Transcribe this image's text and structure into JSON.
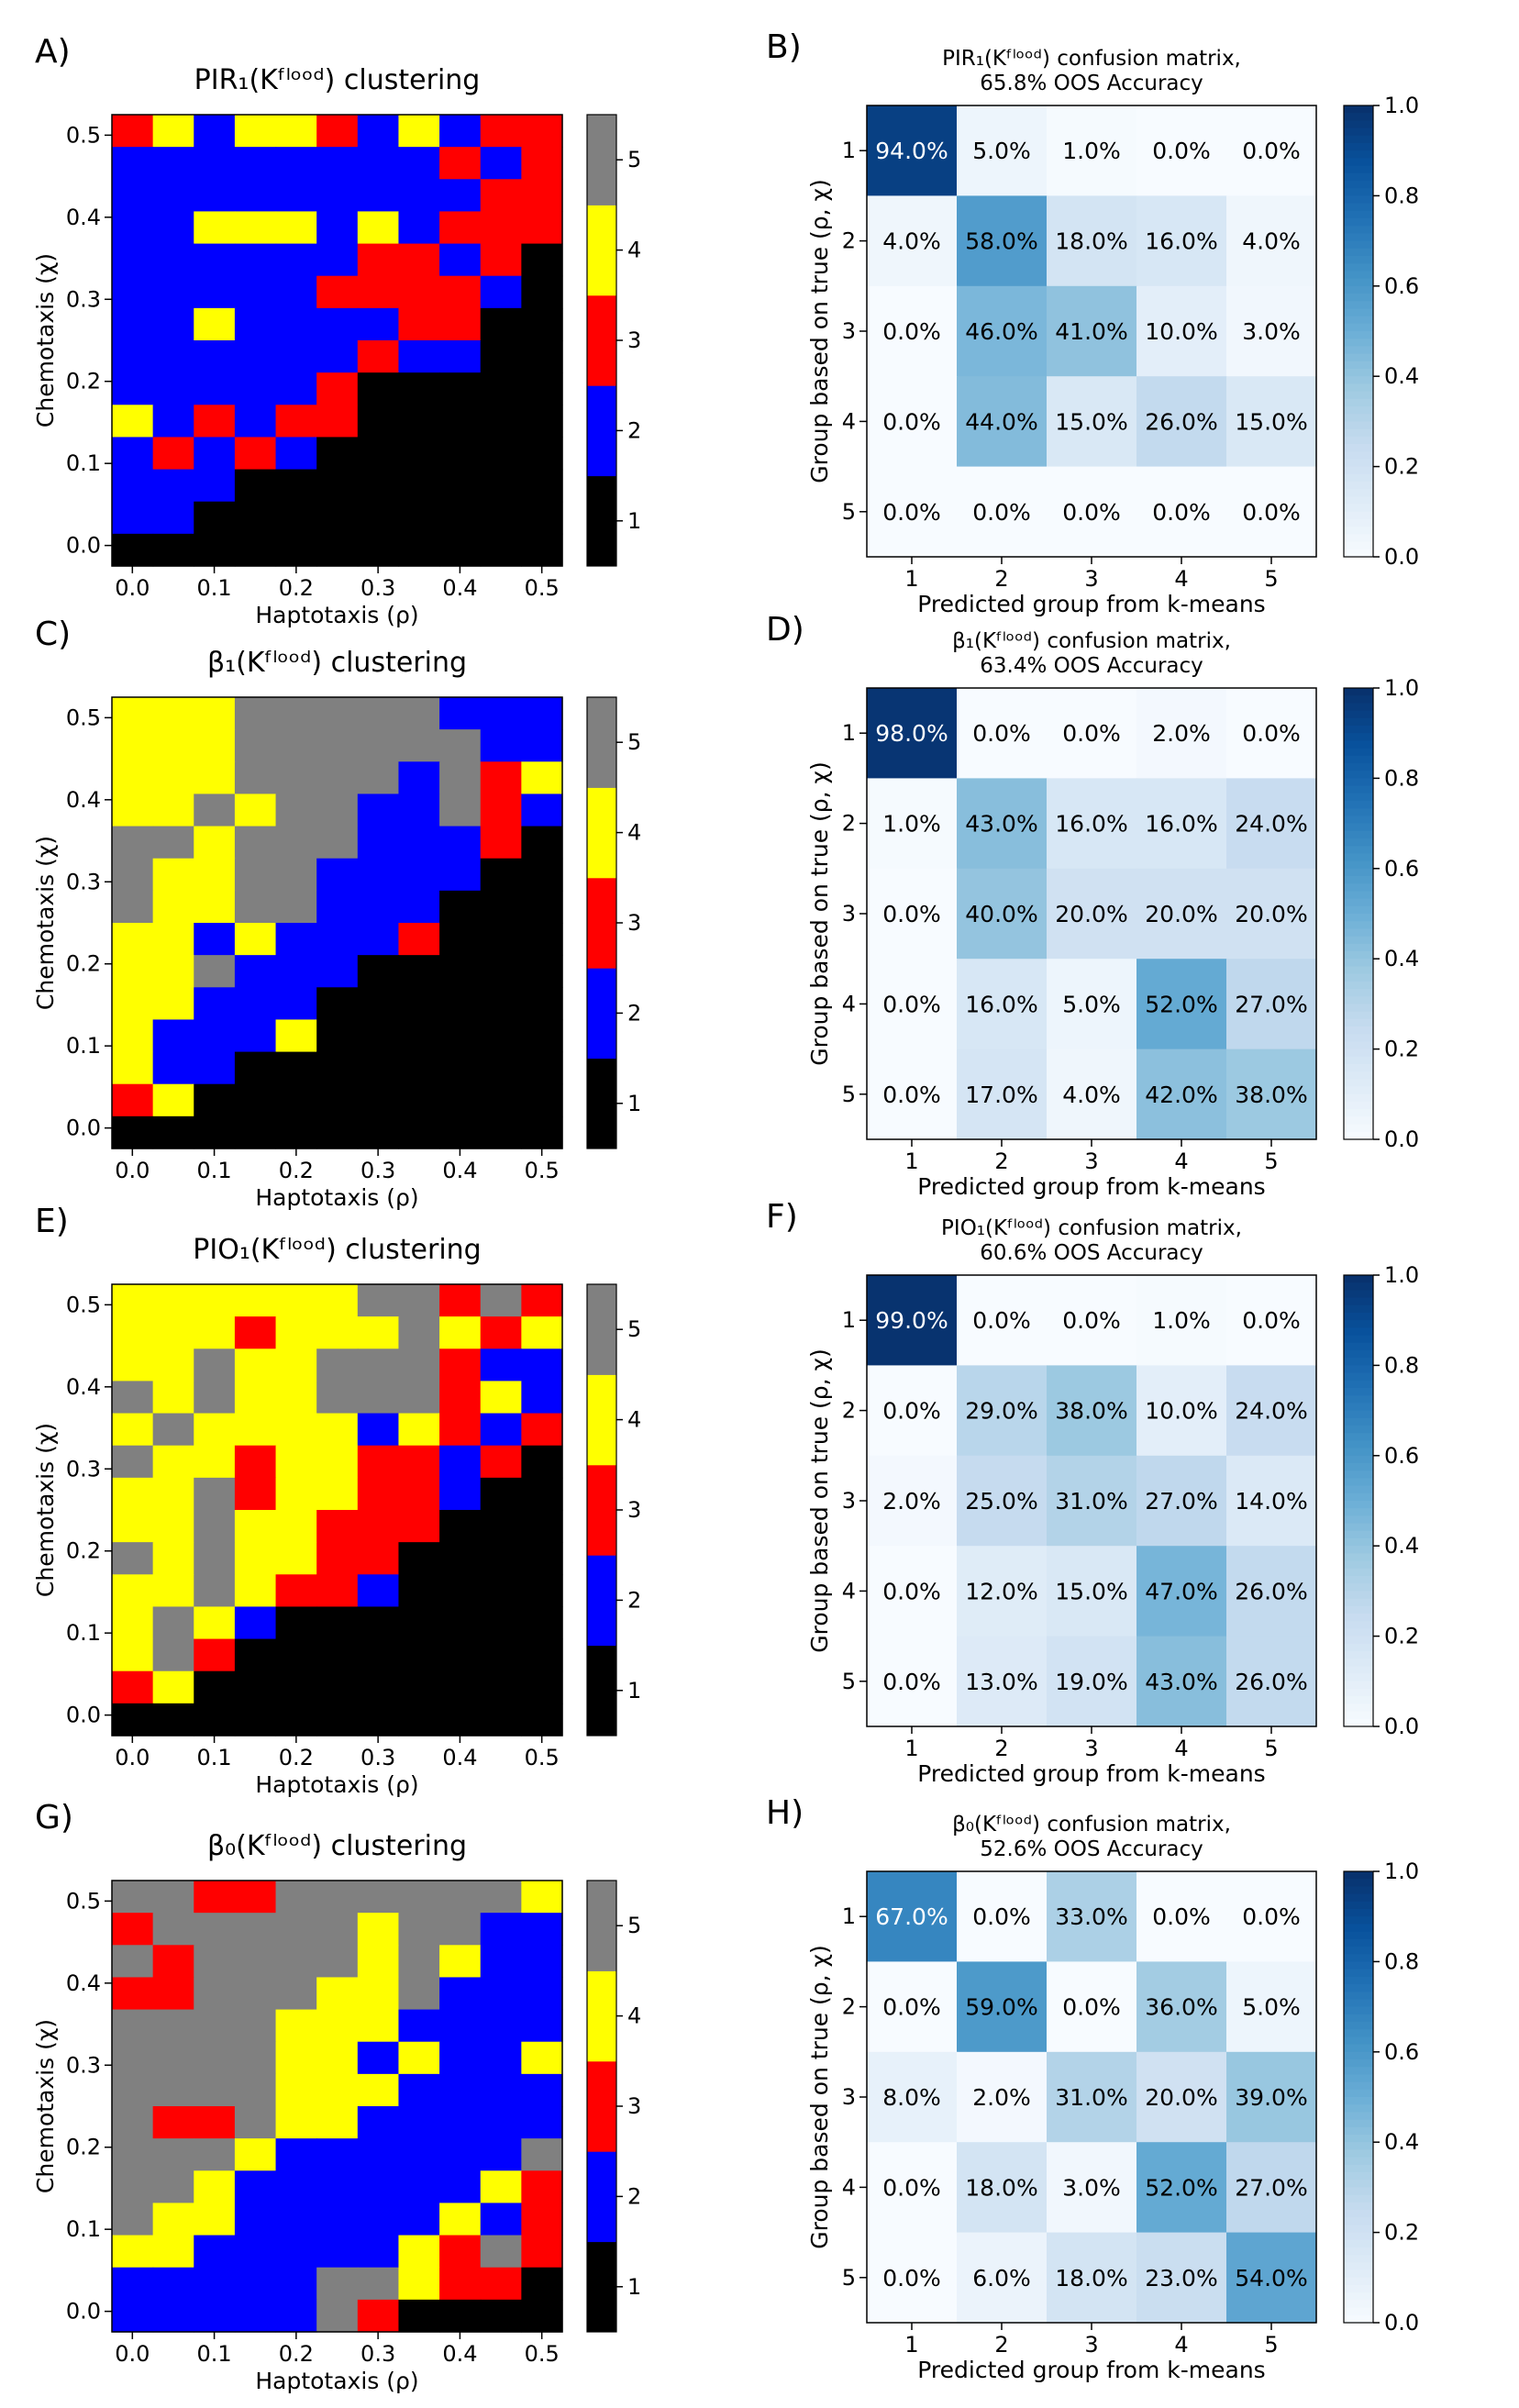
{
  "figure": {
    "caption_note": "",
    "heatmap_colorbar_ticks": [
      "1",
      "2",
      "3",
      "4",
      "5"
    ],
    "confusion_colorbar_ticks": [
      "0.0",
      "0.2",
      "0.4",
      "0.6",
      "0.8",
      "1.0"
    ],
    "colors": {
      "group_1": "#000000",
      "group_2": "#0000ff",
      "group_3": "#ff0000",
      "group_4": "#ffff00",
      "group_5": "#808080",
      "cmap_low": "#f7fbff",
      "cmap_high": "#08306b"
    }
  },
  "chart_data": [
    {
      "panel_label": "A)",
      "type": "heatmap",
      "title": "PIR₁(Kᶠˡᵒᵒᵈ) clustering",
      "xlabel": "Haptotaxis (ρ)",
      "ylabel": "Chemotaxis (χ)",
      "x_ticks": [
        "0.0",
        "0.1",
        "0.2",
        "0.3",
        "0.4",
        "0.5"
      ],
      "y_ticks": [
        "0.0",
        "0.1",
        "0.2",
        "0.3",
        "0.4",
        "0.5"
      ],
      "xlim": [
        -0.025,
        0.525
      ],
      "ylim": [
        -0.025,
        0.525
      ],
      "rows_top_to_bottom": [
        [
          3,
          4,
          2,
          4,
          4,
          3,
          2,
          4,
          2,
          3,
          3
        ],
        [
          2,
          2,
          2,
          2,
          2,
          2,
          2,
          2,
          3,
          2,
          3
        ],
        [
          2,
          2,
          2,
          2,
          2,
          2,
          2,
          2,
          2,
          3,
          3
        ],
        [
          2,
          2,
          4,
          4,
          4,
          2,
          4,
          2,
          3,
          3,
          3
        ],
        [
          2,
          2,
          2,
          2,
          2,
          2,
          3,
          3,
          2,
          3,
          1
        ],
        [
          2,
          2,
          2,
          2,
          2,
          3,
          3,
          3,
          3,
          2,
          1
        ],
        [
          2,
          2,
          4,
          2,
          2,
          2,
          2,
          3,
          3,
          1,
          1
        ],
        [
          2,
          2,
          2,
          2,
          2,
          2,
          3,
          2,
          2,
          1,
          1
        ],
        [
          2,
          2,
          2,
          2,
          2,
          3,
          1,
          1,
          1,
          1,
          1
        ],
        [
          4,
          2,
          3,
          2,
          3,
          3,
          1,
          1,
          1,
          1,
          1
        ],
        [
          2,
          3,
          2,
          3,
          2,
          1,
          1,
          1,
          1,
          1,
          1
        ],
        [
          2,
          2,
          2,
          1,
          1,
          1,
          1,
          1,
          1,
          1,
          1
        ],
        [
          2,
          2,
          1,
          1,
          1,
          1,
          1,
          1,
          1,
          1,
          1
        ],
        [
          1,
          1,
          1,
          1,
          1,
          1,
          1,
          1,
          1,
          1,
          1
        ]
      ]
    },
    {
      "panel_label": "B)",
      "type": "table",
      "title_line1": "PIR₁(Kᶠˡᵒᵒᵈ) confusion matrix,",
      "title_line2": "65.8% OOS Accuracy",
      "xlabel": "Predicted group from k-means",
      "ylabel": "Group based on true (ρ, χ)",
      "categories": [
        "1",
        "2",
        "3",
        "4",
        "5"
      ],
      "values": [
        [
          0.94,
          0.05,
          0.01,
          0.0,
          0.0
        ],
        [
          0.04,
          0.58,
          0.18,
          0.16,
          0.04
        ],
        [
          0.0,
          0.46,
          0.41,
          0.1,
          0.03
        ],
        [
          0.0,
          0.44,
          0.15,
          0.26,
          0.15
        ],
        [
          0.0,
          0.0,
          0.0,
          0.0,
          0.0
        ]
      ],
      "cell_labels": [
        [
          "94.0%",
          "5.0%",
          "1.0%",
          "0.0%",
          "0.0%"
        ],
        [
          "4.0%",
          "58.0%",
          "18.0%",
          "16.0%",
          "4.0%"
        ],
        [
          "0.0%",
          "46.0%",
          "41.0%",
          "10.0%",
          "3.0%"
        ],
        [
          "0.0%",
          "44.0%",
          "15.0%",
          "26.0%",
          "15.0%"
        ],
        [
          "0.0%",
          "0.0%",
          "0.0%",
          "0.0%",
          "0.0%"
        ]
      ]
    },
    {
      "panel_label": "C)",
      "type": "heatmap",
      "title": "β₁(Kᶠˡᵒᵒᵈ) clustering",
      "xlabel": "Haptotaxis (ρ)",
      "ylabel": "Chemotaxis (χ)",
      "x_ticks": [
        "0.0",
        "0.1",
        "0.2",
        "0.3",
        "0.4",
        "0.5"
      ],
      "y_ticks": [
        "0.0",
        "0.1",
        "0.2",
        "0.3",
        "0.4",
        "0.5"
      ],
      "xlim": [
        -0.025,
        0.525
      ],
      "ylim": [
        -0.025,
        0.525
      ],
      "rows_top_to_bottom": [
        [
          4,
          4,
          4,
          5,
          5,
          5,
          5,
          5,
          2,
          2,
          2
        ],
        [
          4,
          4,
          4,
          5,
          5,
          5,
          5,
          5,
          5,
          2,
          2
        ],
        [
          4,
          4,
          4,
          5,
          5,
          5,
          5,
          2,
          5,
          3,
          4
        ],
        [
          4,
          4,
          5,
          4,
          5,
          5,
          2,
          2,
          5,
          3,
          2
        ],
        [
          5,
          5,
          4,
          5,
          5,
          5,
          2,
          2,
          2,
          3,
          1
        ],
        [
          5,
          4,
          4,
          5,
          5,
          2,
          2,
          2,
          2,
          1,
          1
        ],
        [
          5,
          4,
          4,
          5,
          5,
          2,
          2,
          2,
          1,
          1,
          1
        ],
        [
          4,
          4,
          2,
          4,
          2,
          2,
          2,
          3,
          1,
          1,
          1
        ],
        [
          4,
          4,
          5,
          2,
          2,
          2,
          1,
          1,
          1,
          1,
          1
        ],
        [
          4,
          4,
          2,
          2,
          2,
          1,
          1,
          1,
          1,
          1,
          1
        ],
        [
          4,
          2,
          2,
          2,
          4,
          1,
          1,
          1,
          1,
          1,
          1
        ],
        [
          4,
          2,
          2,
          1,
          1,
          1,
          1,
          1,
          1,
          1,
          1
        ],
        [
          3,
          4,
          1,
          1,
          1,
          1,
          1,
          1,
          1,
          1,
          1
        ],
        [
          1,
          1,
          1,
          1,
          1,
          1,
          1,
          1,
          1,
          1,
          1
        ]
      ]
    },
    {
      "panel_label": "D)",
      "type": "table",
      "title_line1": "β₁(Kᶠˡᵒᵒᵈ) confusion matrix,",
      "title_line2": "63.4% OOS Accuracy",
      "xlabel": "Predicted group from k-means",
      "ylabel": "Group based on true (ρ, χ)",
      "categories": [
        "1",
        "2",
        "3",
        "4",
        "5"
      ],
      "values": [
        [
          0.98,
          0.0,
          0.0,
          0.02,
          0.0
        ],
        [
          0.01,
          0.43,
          0.16,
          0.16,
          0.24
        ],
        [
          0.0,
          0.4,
          0.2,
          0.2,
          0.2
        ],
        [
          0.0,
          0.16,
          0.05,
          0.52,
          0.27
        ],
        [
          0.0,
          0.17,
          0.04,
          0.42,
          0.38
        ]
      ],
      "cell_labels": [
        [
          "98.0%",
          "0.0%",
          "0.0%",
          "2.0%",
          "0.0%"
        ],
        [
          "1.0%",
          "43.0%",
          "16.0%",
          "16.0%",
          "24.0%"
        ],
        [
          "0.0%",
          "40.0%",
          "20.0%",
          "20.0%",
          "20.0%"
        ],
        [
          "0.0%",
          "16.0%",
          "5.0%",
          "52.0%",
          "27.0%"
        ],
        [
          "0.0%",
          "17.0%",
          "4.0%",
          "42.0%",
          "38.0%"
        ]
      ]
    },
    {
      "panel_label": "E)",
      "type": "heatmap",
      "title": "PIO₁(Kᶠˡᵒᵒᵈ) clustering",
      "xlabel": "Haptotaxis (ρ)",
      "ylabel": "Chemotaxis (χ)",
      "x_ticks": [
        "0.0",
        "0.1",
        "0.2",
        "0.3",
        "0.4",
        "0.5"
      ],
      "y_ticks": [
        "0.0",
        "0.1",
        "0.2",
        "0.3",
        "0.4",
        "0.5"
      ],
      "xlim": [
        -0.025,
        0.525
      ],
      "ylim": [
        -0.025,
        0.525
      ],
      "rows_top_to_bottom": [
        [
          4,
          4,
          4,
          4,
          4,
          4,
          5,
          5,
          3,
          5,
          3
        ],
        [
          4,
          4,
          4,
          3,
          4,
          4,
          4,
          5,
          4,
          3,
          4
        ],
        [
          4,
          4,
          5,
          4,
          4,
          5,
          5,
          5,
          3,
          2,
          2
        ],
        [
          5,
          4,
          5,
          4,
          4,
          5,
          5,
          5,
          3,
          4,
          2
        ],
        [
          4,
          5,
          4,
          4,
          4,
          4,
          2,
          4,
          3,
          2,
          3
        ],
        [
          5,
          4,
          4,
          3,
          4,
          4,
          3,
          3,
          2,
          3,
          1
        ],
        [
          4,
          4,
          5,
          3,
          4,
          4,
          3,
          3,
          2,
          1,
          1
        ],
        [
          4,
          4,
          5,
          4,
          4,
          3,
          3,
          3,
          1,
          1,
          1
        ],
        [
          5,
          4,
          5,
          4,
          4,
          3,
          3,
          1,
          1,
          1,
          1
        ],
        [
          4,
          4,
          5,
          4,
          3,
          3,
          2,
          1,
          1,
          1,
          1
        ],
        [
          4,
          5,
          4,
          2,
          1,
          1,
          1,
          1,
          1,
          1,
          1
        ],
        [
          4,
          5,
          3,
          1,
          1,
          1,
          1,
          1,
          1,
          1,
          1
        ],
        [
          3,
          4,
          1,
          1,
          1,
          1,
          1,
          1,
          1,
          1,
          1
        ],
        [
          1,
          1,
          1,
          1,
          1,
          1,
          1,
          1,
          1,
          1,
          1
        ]
      ]
    },
    {
      "panel_label": "F)",
      "type": "table",
      "title_line1": "PIO₁(Kᶠˡᵒᵒᵈ) confusion matrix,",
      "title_line2": "60.6% OOS Accuracy",
      "xlabel": "Predicted group from k-means",
      "ylabel": "Group based on true (ρ, χ)",
      "categories": [
        "1",
        "2",
        "3",
        "4",
        "5"
      ],
      "values": [
        [
          0.99,
          0.0,
          0.0,
          0.01,
          0.0
        ],
        [
          0.0,
          0.29,
          0.38,
          0.1,
          0.24
        ],
        [
          0.02,
          0.25,
          0.31,
          0.27,
          0.14
        ],
        [
          0.0,
          0.12,
          0.15,
          0.47,
          0.26
        ],
        [
          0.0,
          0.13,
          0.19,
          0.43,
          0.26
        ]
      ],
      "cell_labels": [
        [
          "99.0%",
          "0.0%",
          "0.0%",
          "1.0%",
          "0.0%"
        ],
        [
          "0.0%",
          "29.0%",
          "38.0%",
          "10.0%",
          "24.0%"
        ],
        [
          "2.0%",
          "25.0%",
          "31.0%",
          "27.0%",
          "14.0%"
        ],
        [
          "0.0%",
          "12.0%",
          "15.0%",
          "47.0%",
          "26.0%"
        ],
        [
          "0.0%",
          "13.0%",
          "19.0%",
          "43.0%",
          "26.0%"
        ]
      ]
    },
    {
      "panel_label": "G)",
      "type": "heatmap",
      "title": "β₀(Kᶠˡᵒᵒᵈ) clustering",
      "xlabel": "Haptotaxis (ρ)",
      "ylabel": "Chemotaxis (χ)",
      "x_ticks": [
        "0.0",
        "0.1",
        "0.2",
        "0.3",
        "0.4",
        "0.5"
      ],
      "y_ticks": [
        "0.0",
        "0.1",
        "0.2",
        "0.3",
        "0.4",
        "0.5"
      ],
      "xlim": [
        -0.025,
        0.525
      ],
      "ylim": [
        -0.025,
        0.525
      ],
      "rows_top_to_bottom": [
        [
          5,
          5,
          3,
          3,
          5,
          5,
          5,
          5,
          5,
          5,
          4
        ],
        [
          3,
          5,
          5,
          5,
          5,
          5,
          4,
          5,
          5,
          2,
          2
        ],
        [
          5,
          3,
          5,
          5,
          5,
          5,
          4,
          5,
          4,
          2,
          2
        ],
        [
          3,
          3,
          5,
          5,
          5,
          4,
          4,
          5,
          2,
          2,
          2
        ],
        [
          5,
          5,
          5,
          5,
          4,
          4,
          4,
          2,
          2,
          2,
          2
        ],
        [
          5,
          5,
          5,
          5,
          4,
          4,
          2,
          4,
          2,
          2,
          4
        ],
        [
          5,
          5,
          5,
          5,
          4,
          4,
          4,
          2,
          2,
          2,
          2
        ],
        [
          5,
          3,
          3,
          5,
          4,
          4,
          2,
          2,
          2,
          2,
          2
        ],
        [
          5,
          5,
          5,
          4,
          2,
          2,
          2,
          2,
          2,
          2,
          5
        ],
        [
          5,
          5,
          4,
          2,
          2,
          2,
          2,
          2,
          2,
          4,
          3
        ],
        [
          5,
          4,
          4,
          2,
          2,
          2,
          2,
          2,
          4,
          2,
          3
        ],
        [
          4,
          4,
          2,
          2,
          2,
          2,
          2,
          4,
          3,
          5,
          3
        ],
        [
          2,
          2,
          2,
          2,
          2,
          5,
          5,
          4,
          3,
          3,
          1
        ],
        [
          2,
          2,
          2,
          2,
          2,
          5,
          3,
          1,
          1,
          1,
          1
        ]
      ]
    },
    {
      "panel_label": "H)",
      "type": "table",
      "title_line1": "β₀(Kᶠˡᵒᵒᵈ) confusion matrix,",
      "title_line2": "52.6% OOS Accuracy",
      "xlabel": "Predicted group from k-means",
      "ylabel": "Group based on true (ρ, χ)",
      "categories": [
        "1",
        "2",
        "3",
        "4",
        "5"
      ],
      "values": [
        [
          0.67,
          0.0,
          0.33,
          0.0,
          0.0
        ],
        [
          0.0,
          0.59,
          0.0,
          0.36,
          0.05
        ],
        [
          0.08,
          0.02,
          0.31,
          0.2,
          0.39
        ],
        [
          0.0,
          0.18,
          0.03,
          0.52,
          0.27
        ],
        [
          0.0,
          0.06,
          0.18,
          0.23,
          0.54
        ]
      ],
      "cell_labels": [
        [
          "67.0%",
          "0.0%",
          "33.0%",
          "0.0%",
          "0.0%"
        ],
        [
          "0.0%",
          "59.0%",
          "0.0%",
          "36.0%",
          "5.0%"
        ],
        [
          "8.0%",
          "2.0%",
          "31.0%",
          "20.0%",
          "39.0%"
        ],
        [
          "0.0%",
          "18.0%",
          "3.0%",
          "52.0%",
          "27.0%"
        ],
        [
          "0.0%",
          "6.0%",
          "18.0%",
          "23.0%",
          "54.0%"
        ]
      ]
    }
  ]
}
